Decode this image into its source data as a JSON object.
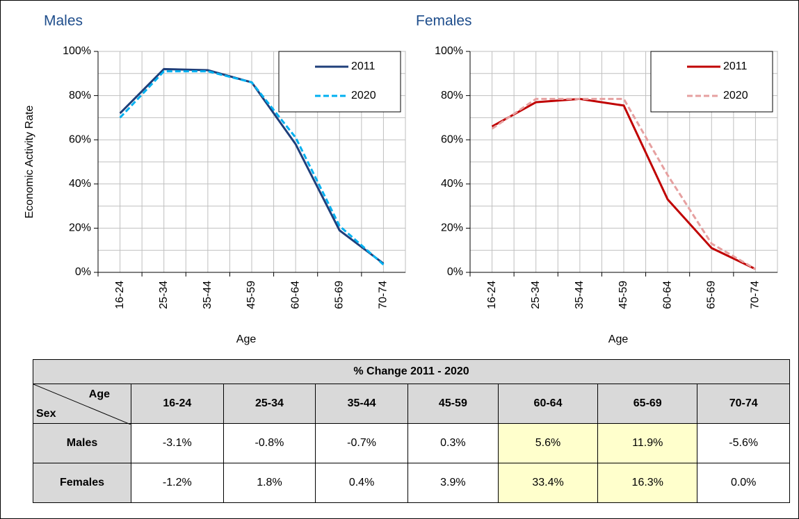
{
  "chart_data": [
    {
      "type": "line",
      "title": "Males",
      "ylabel": "Economic Activity Rate",
      "xlabel": "Age",
      "categories": [
        "16-24",
        "25-34",
        "35-44",
        "45-59",
        "60-64",
        "65-69",
        "70-74"
      ],
      "series": [
        {
          "name": "2011",
          "color": "#1f3f7a",
          "dashed": false,
          "values": [
            72,
            92,
            91.5,
            86,
            58,
            19,
            4
          ]
        },
        {
          "name": "2020",
          "color": "#00b0f0",
          "dashed": true,
          "values": [
            70,
            91,
            91,
            86,
            61,
            21,
            3.5
          ]
        }
      ],
      "ylim": [
        0,
        100
      ],
      "yticks": [
        {
          "value": 0,
          "label": "0%"
        },
        {
          "value": 20,
          "label": "20%"
        },
        {
          "value": 40,
          "label": "40%"
        },
        {
          "value": 60,
          "label": "60%"
        },
        {
          "value": 80,
          "label": "80%"
        },
        {
          "value": 100,
          "label": "100%"
        }
      ],
      "minor_yticks": [
        10,
        30,
        50,
        70,
        90
      ],
      "grid": true,
      "legend": "upper right"
    },
    {
      "type": "line",
      "title": "Females",
      "xlabel": "Age",
      "categories": [
        "16-24",
        "25-34",
        "35-44",
        "45-59",
        "60-64",
        "65-69",
        "70-74"
      ],
      "series": [
        {
          "name": "2011",
          "color": "#c00000",
          "dashed": false,
          "values": [
            66,
            77,
            78.5,
            75.5,
            33,
            11,
            1.5
          ]
        },
        {
          "name": "2020",
          "color": "#e6a0a0",
          "dashed": true,
          "values": [
            65,
            78.5,
            78.5,
            78.5,
            44,
            13,
            1.5
          ]
        }
      ],
      "ylim": [
        0,
        100
      ],
      "yticks": [
        {
          "value": 0,
          "label": "0%"
        },
        {
          "value": 20,
          "label": "20%"
        },
        {
          "value": 40,
          "label": "40%"
        },
        {
          "value": 60,
          "label": "60%"
        },
        {
          "value": 80,
          "label": "80%"
        },
        {
          "value": 100,
          "label": "100%"
        }
      ],
      "minor_yticks": [
        10,
        30,
        50,
        70,
        90
      ],
      "grid": true,
      "legend": "upper right"
    }
  ],
  "table": {
    "title": "% Change 2011 - 2020",
    "corner_top": "Age",
    "corner_bottom": "Sex",
    "columns": [
      "16-24",
      "25-34",
      "35-44",
      "45-59",
      "60-64",
      "65-69",
      "70-74"
    ],
    "rows": [
      {
        "label": "Males",
        "values": [
          "-3.1%",
          "-0.8%",
          "-0.7%",
          "0.3%",
          "5.6%",
          "11.9%",
          "-5.6%"
        ]
      },
      {
        "label": "Females",
        "values": [
          "-1.2%",
          "1.8%",
          "0.4%",
          "3.9%",
          "33.4%",
          "16.3%",
          "0.0%"
        ]
      }
    ]
  }
}
